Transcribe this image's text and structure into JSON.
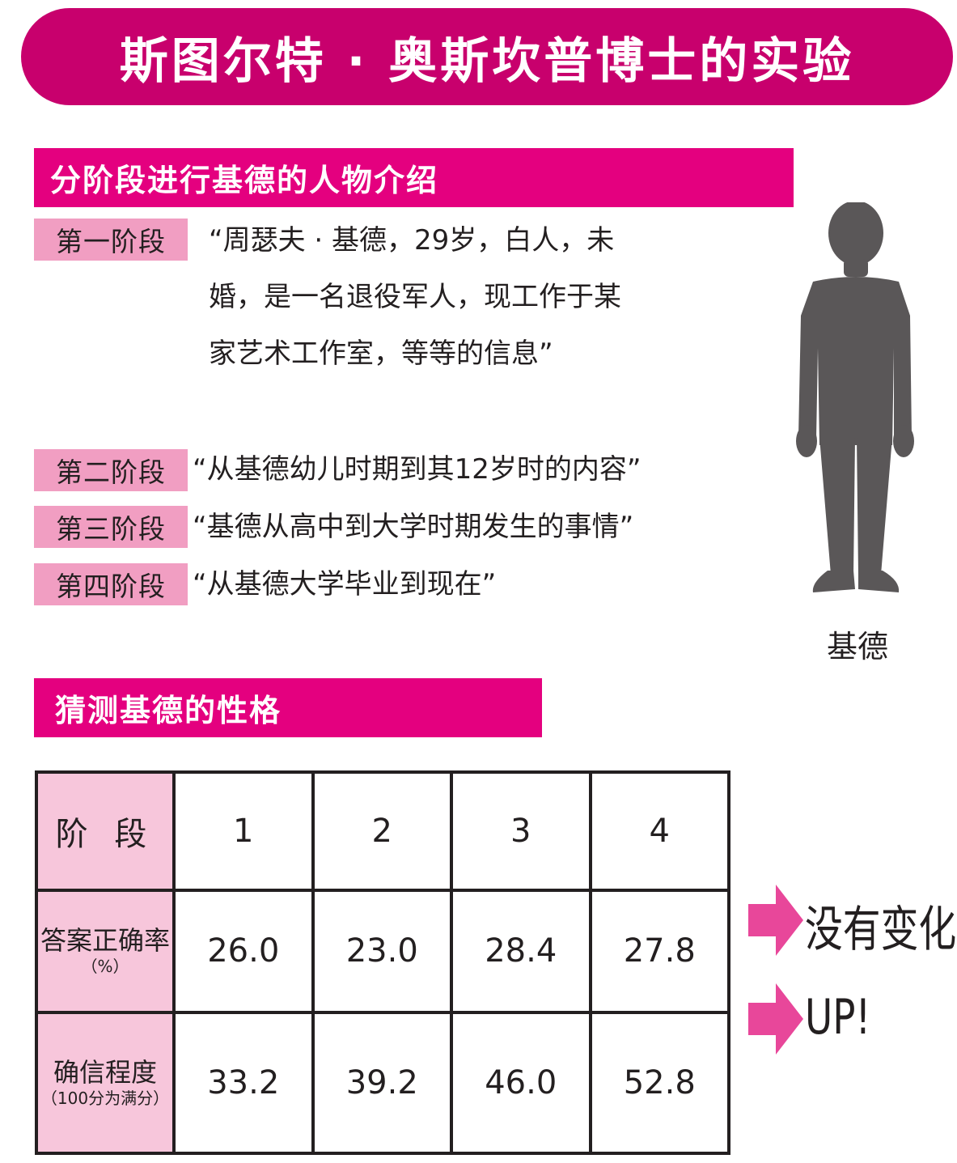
{
  "title": "斯图尔特 · 奥斯坎普博士的实验",
  "section1": {
    "heading": "分阶段进行基德的人物介绍",
    "stages": [
      {
        "label": "第一阶段",
        "text": "“周瑟夫 · 基德，29岁，白人，未婚，是一名退役军人，现工作于某家艺术工作室，等等的信息”"
      },
      {
        "label": "第二阶段",
        "text": "“从基德幼儿时期到其12岁时的内容”"
      },
      {
        "label": "第三阶段",
        "text": "“基德从高中到大学时期发生的事情”"
      },
      {
        "label": "第四阶段",
        "text": "“从基德大学毕业到现在”"
      }
    ],
    "person_name": "基德",
    "person_icon": "person-silhouette-icon"
  },
  "section2": {
    "heading": "猜测基德的性格"
  },
  "table": {
    "header_label": "阶 段",
    "columns": [
      "1",
      "2",
      "3",
      "4"
    ],
    "rows": [
      {
        "label": "答案正确率",
        "sublabel": "（%）",
        "values": [
          "26.0",
          "23.0",
          "28.4",
          "27.8"
        ]
      },
      {
        "label": "确信程度",
        "sublabel": "（100分为满分）",
        "values": [
          "33.2",
          "39.2",
          "46.0",
          "52.8"
        ]
      }
    ]
  },
  "annotations": [
    {
      "icon": "arrow-right-icon",
      "text": "没有变化"
    },
    {
      "icon": "arrow-right-icon",
      "text": "UP!"
    }
  ],
  "colors": {
    "title_banner": "#c8006d",
    "section_bar": "#e4007f",
    "stage_label_bg": "#f19ec2",
    "table_head_bg": "#f7c6db",
    "arrow": "#e8479a",
    "silhouette": "#5a5758"
  }
}
